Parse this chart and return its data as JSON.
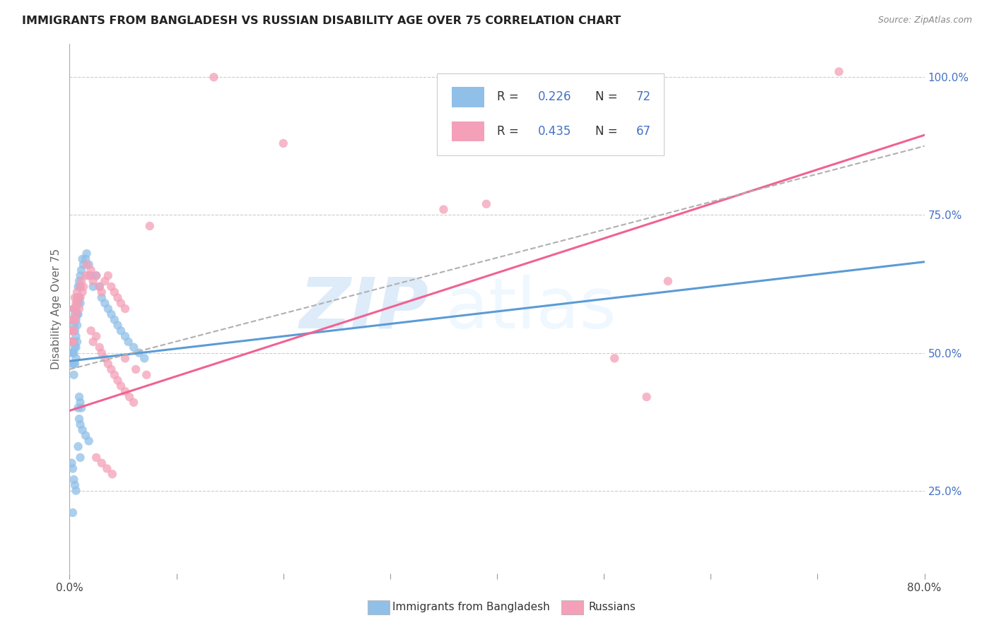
{
  "title": "IMMIGRANTS FROM BANGLADESH VS RUSSIAN DISABILITY AGE OVER 75 CORRELATION CHART",
  "source": "Source: ZipAtlas.com",
  "ylabel": "Disability Age Over 75",
  "ytick_labels": [
    "25.0%",
    "50.0%",
    "75.0%",
    "100.0%"
  ],
  "legend_bottom": [
    "Immigrants from Bangladesh",
    "Russians"
  ],
  "watermark_zip": "ZIP",
  "watermark_atlas": "atlas",
  "blue_color": "#90c0e8",
  "pink_color": "#f4a0b8",
  "blue_line_color": "#5b9bd5",
  "pink_line_color": "#f06292",
  "dashed_line_color": "#b0b0b0",
  "xmin": 0.0,
  "xmax": 0.8,
  "ymin": 0.1,
  "ymax": 1.06,
  "blue_scatter": [
    [
      0.001,
      0.52
    ],
    [
      0.002,
      0.54
    ],
    [
      0.002,
      0.5
    ],
    [
      0.003,
      0.56
    ],
    [
      0.003,
      0.52
    ],
    [
      0.003,
      0.5
    ],
    [
      0.003,
      0.48
    ],
    [
      0.004,
      0.58
    ],
    [
      0.004,
      0.55
    ],
    [
      0.004,
      0.52
    ],
    [
      0.004,
      0.5
    ],
    [
      0.004,
      0.48
    ],
    [
      0.004,
      0.46
    ],
    [
      0.005,
      0.57
    ],
    [
      0.005,
      0.54
    ],
    [
      0.005,
      0.51
    ],
    [
      0.005,
      0.48
    ],
    [
      0.006,
      0.58
    ],
    [
      0.006,
      0.56
    ],
    [
      0.006,
      0.53
    ],
    [
      0.006,
      0.51
    ],
    [
      0.006,
      0.49
    ],
    [
      0.007,
      0.6
    ],
    [
      0.007,
      0.57
    ],
    [
      0.007,
      0.55
    ],
    [
      0.007,
      0.52
    ],
    [
      0.008,
      0.62
    ],
    [
      0.008,
      0.59
    ],
    [
      0.008,
      0.57
    ],
    [
      0.009,
      0.63
    ],
    [
      0.009,
      0.6
    ],
    [
      0.01,
      0.64
    ],
    [
      0.01,
      0.62
    ],
    [
      0.01,
      0.59
    ],
    [
      0.011,
      0.65
    ],
    [
      0.012,
      0.67
    ],
    [
      0.013,
      0.66
    ],
    [
      0.015,
      0.67
    ],
    [
      0.016,
      0.68
    ],
    [
      0.018,
      0.66
    ],
    [
      0.02,
      0.64
    ],
    [
      0.022,
      0.62
    ],
    [
      0.025,
      0.64
    ],
    [
      0.028,
      0.62
    ],
    [
      0.03,
      0.6
    ],
    [
      0.033,
      0.59
    ],
    [
      0.036,
      0.58
    ],
    [
      0.039,
      0.57
    ],
    [
      0.042,
      0.56
    ],
    [
      0.045,
      0.55
    ],
    [
      0.048,
      0.54
    ],
    [
      0.052,
      0.53
    ],
    [
      0.055,
      0.52
    ],
    [
      0.06,
      0.51
    ],
    [
      0.065,
      0.5
    ],
    [
      0.07,
      0.49
    ],
    [
      0.008,
      0.4
    ],
    [
      0.009,
      0.38
    ],
    [
      0.01,
      0.37
    ],
    [
      0.012,
      0.36
    ],
    [
      0.015,
      0.35
    ],
    [
      0.018,
      0.34
    ],
    [
      0.003,
      0.21
    ],
    [
      0.009,
      0.42
    ],
    [
      0.01,
      0.41
    ],
    [
      0.011,
      0.4
    ],
    [
      0.002,
      0.3
    ],
    [
      0.003,
      0.29
    ],
    [
      0.004,
      0.27
    ],
    [
      0.005,
      0.26
    ],
    [
      0.006,
      0.25
    ],
    [
      0.008,
      0.33
    ],
    [
      0.01,
      0.31
    ]
  ],
  "pink_scatter": [
    [
      0.002,
      0.54
    ],
    [
      0.002,
      0.52
    ],
    [
      0.003,
      0.56
    ],
    [
      0.003,
      0.54
    ],
    [
      0.003,
      0.52
    ],
    [
      0.004,
      0.58
    ],
    [
      0.004,
      0.56
    ],
    [
      0.004,
      0.54
    ],
    [
      0.005,
      0.6
    ],
    [
      0.005,
      0.58
    ],
    [
      0.005,
      0.56
    ],
    [
      0.006,
      0.59
    ],
    [
      0.006,
      0.57
    ],
    [
      0.007,
      0.61
    ],
    [
      0.007,
      0.59
    ],
    [
      0.008,
      0.6
    ],
    [
      0.009,
      0.58
    ],
    [
      0.01,
      0.62
    ],
    [
      0.01,
      0.6
    ],
    [
      0.011,
      0.63
    ],
    [
      0.012,
      0.61
    ],
    [
      0.013,
      0.62
    ],
    [
      0.015,
      0.64
    ],
    [
      0.016,
      0.66
    ],
    [
      0.018,
      0.64
    ],
    [
      0.02,
      0.65
    ],
    [
      0.022,
      0.63
    ],
    [
      0.025,
      0.64
    ],
    [
      0.028,
      0.62
    ],
    [
      0.03,
      0.61
    ],
    [
      0.033,
      0.63
    ],
    [
      0.036,
      0.64
    ],
    [
      0.039,
      0.62
    ],
    [
      0.042,
      0.61
    ],
    [
      0.045,
      0.6
    ],
    [
      0.048,
      0.59
    ],
    [
      0.052,
      0.58
    ],
    [
      0.02,
      0.54
    ],
    [
      0.022,
      0.52
    ],
    [
      0.025,
      0.53
    ],
    [
      0.028,
      0.51
    ],
    [
      0.03,
      0.5
    ],
    [
      0.033,
      0.49
    ],
    [
      0.036,
      0.48
    ],
    [
      0.039,
      0.47
    ],
    [
      0.042,
      0.46
    ],
    [
      0.045,
      0.45
    ],
    [
      0.048,
      0.44
    ],
    [
      0.052,
      0.43
    ],
    [
      0.056,
      0.42
    ],
    [
      0.06,
      0.41
    ],
    [
      0.025,
      0.31
    ],
    [
      0.03,
      0.3
    ],
    [
      0.035,
      0.29
    ],
    [
      0.04,
      0.28
    ],
    [
      0.052,
      0.49
    ],
    [
      0.062,
      0.47
    ],
    [
      0.072,
      0.46
    ],
    [
      0.135,
      1.0
    ],
    [
      0.72,
      1.01
    ],
    [
      0.39,
      0.77
    ],
    [
      0.51,
      0.49
    ],
    [
      0.54,
      0.42
    ],
    [
      0.56,
      0.63
    ],
    [
      0.2,
      0.88
    ],
    [
      0.35,
      0.76
    ],
    [
      0.075,
      0.73
    ]
  ],
  "blue_line": {
    "x0": 0.0,
    "x1": 0.8,
    "y0": 0.485,
    "y1": 0.665
  },
  "pink_line": {
    "x0": 0.0,
    "x1": 0.8,
    "y0": 0.395,
    "y1": 0.895
  },
  "dashed_line": {
    "x0": 0.0,
    "x1": 0.8,
    "y0": 0.47,
    "y1": 0.875
  }
}
